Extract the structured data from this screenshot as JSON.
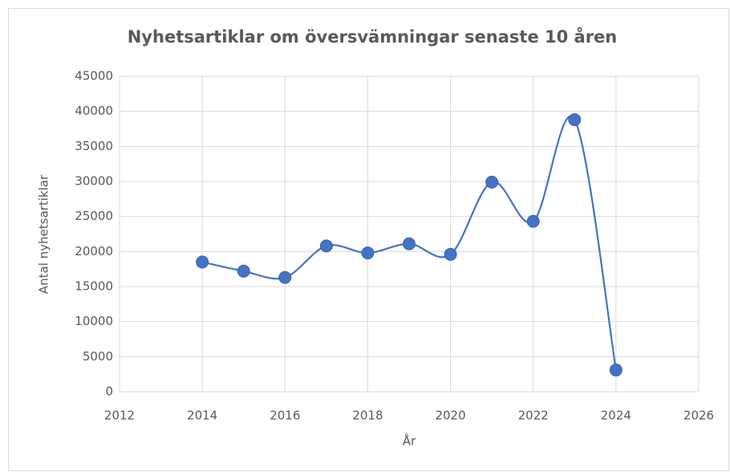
{
  "chart_data": {
    "type": "scatter",
    "title": "Nyhetsartiklar om översvämningar senaste 10 åren",
    "x_label": "År",
    "y_label": "Antal nyhetsartiklar",
    "x": [
      2014,
      2015,
      2016,
      2017,
      2018,
      2019,
      2020,
      2021,
      2022,
      2023,
      2024
    ],
    "series": [
      {
        "name": "Antal nyhetsartiklar",
        "color": "#4472c4",
        "values": [
          18500,
          17200,
          16300,
          20800,
          19800,
          21100,
          19600,
          29900,
          24300,
          38800,
          3100
        ]
      }
    ],
    "smooth": true,
    "markers": true,
    "xlim": [
      2012,
      2026
    ],
    "xticks": [
      2012,
      2014,
      2016,
      2018,
      2020,
      2022,
      2024,
      2026
    ],
    "ylim": [
      0,
      45000
    ],
    "yticks": [
      0,
      5000,
      10000,
      15000,
      20000,
      25000,
      30000,
      35000,
      40000,
      45000
    ],
    "grid": true
  }
}
